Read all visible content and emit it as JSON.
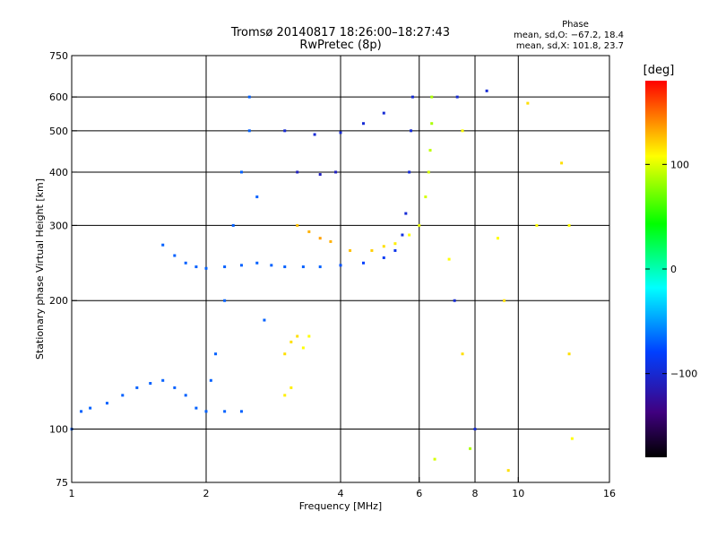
{
  "chart_data": {
    "type": "scatter",
    "title": "Tromsø 20140817 18:26:00–18:27:43",
    "subtitle": "RwPretec (8p)",
    "xlabel": "Frequency [MHz]",
    "ylabel": "Stationary phase Virtual Height [km]",
    "x_scale": "log",
    "y_scale": "log",
    "xlim": [
      1,
      16
    ],
    "ylim": [
      75,
      750
    ],
    "x_ticks": [
      1,
      2,
      4,
      6,
      8,
      10,
      16
    ],
    "x_tick_labels": [
      "1",
      "2",
      "4",
      "6",
      "8",
      "10",
      "16"
    ],
    "y_ticks": [
      75,
      100,
      200,
      300,
      400,
      500,
      600,
      750
    ],
    "y_tick_labels": [
      "75",
      "100",
      "200",
      "300",
      "400",
      "500",
      "600",
      "750"
    ],
    "grid": true,
    "phase_stats": {
      "title": "Phase",
      "line1": "mean, sd,O: −67.2, 18.4",
      "line2": "mean, sd,X: 101.8, 23.7"
    },
    "colorbar": {
      "label": "[deg]",
      "range": [
        -180,
        180
      ],
      "ticks": [
        100,
        0,
        -100
      ],
      "tick_labels": [
        "100",
        "0",
        "−100"
      ],
      "colormap": "rainbow"
    },
    "series": [
      {
        "points": [
          [
            1.0,
            100,
            -70
          ],
          [
            1.05,
            110,
            -70
          ],
          [
            1.1,
            112,
            -70
          ],
          [
            1.2,
            115,
            -70
          ],
          [
            1.3,
            120,
            -70
          ],
          [
            1.4,
            125,
            -70
          ],
          [
            1.5,
            128,
            -70
          ],
          [
            1.6,
            130,
            -70
          ],
          [
            1.7,
            125,
            -70
          ],
          [
            1.8,
            120,
            -70
          ],
          [
            1.9,
            112,
            -70
          ],
          [
            2.0,
            110,
            -70
          ],
          [
            2.2,
            110,
            -70
          ],
          [
            2.4,
            110,
            -70
          ],
          [
            1.6,
            270,
            -70
          ],
          [
            1.7,
            255,
            -70
          ],
          [
            1.8,
            245,
            -70
          ],
          [
            1.9,
            240,
            -70
          ],
          [
            2.0,
            238,
            -70
          ],
          [
            2.2,
            240,
            -70
          ],
          [
            2.4,
            242,
            -70
          ],
          [
            2.6,
            245,
            -70
          ],
          [
            2.8,
            242,
            -70
          ],
          [
            3.0,
            240,
            -70
          ],
          [
            3.3,
            240,
            -70
          ],
          [
            3.6,
            240,
            -70
          ],
          [
            4.0,
            242,
            -75
          ],
          [
            4.5,
            245,
            -80
          ],
          [
            5.0,
            252,
            -85
          ],
          [
            5.3,
            262,
            -90
          ],
          [
            5.5,
            285,
            -95
          ],
          [
            5.6,
            320,
            -100
          ],
          [
            5.7,
            400,
            -100
          ],
          [
            5.75,
            500,
            -100
          ],
          [
            5.8,
            600,
            -100
          ],
          [
            2.1,
            150,
            -70
          ],
          [
            2.2,
            200,
            -70
          ],
          [
            2.3,
            300,
            -70
          ],
          [
            2.4,
            400,
            -70
          ],
          [
            2.5,
            500,
            -70
          ],
          [
            2.5,
            600,
            -70
          ],
          [
            2.6,
            350,
            -70
          ],
          [
            2.7,
            180,
            -70
          ],
          [
            2.05,
            130,
            -70
          ],
          [
            3.0,
            500,
            -100
          ],
          [
            3.5,
            490,
            -100
          ],
          [
            4.0,
            495,
            -100
          ],
          [
            4.5,
            520,
            -100
          ],
          [
            5.0,
            550,
            -100
          ],
          [
            3.2,
            400,
            -110
          ],
          [
            3.6,
            395,
            -110
          ],
          [
            3.9,
            400,
            -110
          ],
          [
            3.2,
            300,
            120
          ],
          [
            3.4,
            290,
            125
          ],
          [
            3.6,
            280,
            130
          ],
          [
            3.8,
            275,
            125
          ],
          [
            4.2,
            262,
            120
          ],
          [
            4.7,
            262,
            115
          ],
          [
            5.0,
            268,
            110
          ],
          [
            5.3,
            272,
            105
          ],
          [
            5.7,
            285,
            100
          ],
          [
            6.0,
            300,
            95
          ],
          [
            6.2,
            350,
            90
          ],
          [
            6.3,
            400,
            90
          ],
          [
            6.35,
            450,
            85
          ],
          [
            6.4,
            520,
            80
          ],
          [
            6.4,
            600,
            80
          ],
          [
            3.0,
            150,
            110
          ],
          [
            3.1,
            160,
            110
          ],
          [
            3.2,
            165,
            110
          ],
          [
            3.0,
            120,
            105
          ],
          [
            3.1,
            125,
            105
          ],
          [
            3.3,
            155,
            100
          ],
          [
            3.4,
            165,
            100
          ],
          [
            7.0,
            250,
            100
          ],
          [
            7.2,
            200,
            -100
          ],
          [
            7.5,
            150,
            110
          ],
          [
            7.3,
            600,
            -100
          ],
          [
            7.5,
            500,
            100
          ],
          [
            8.5,
            620,
            -100
          ],
          [
            9.0,
            280,
            100
          ],
          [
            9.3,
            200,
            110
          ],
          [
            10.5,
            580,
            110
          ],
          [
            11.0,
            300,
            100
          ],
          [
            12.5,
            420,
            110
          ],
          [
            13.0,
            300,
            100
          ],
          [
            13.0,
            150,
            110
          ],
          [
            13.2,
            95,
            100
          ],
          [
            6.5,
            85,
            90
          ],
          [
            7.8,
            90,
            80
          ],
          [
            9.5,
            80,
            110
          ],
          [
            8.0,
            100,
            -100
          ]
        ]
      }
    ]
  }
}
